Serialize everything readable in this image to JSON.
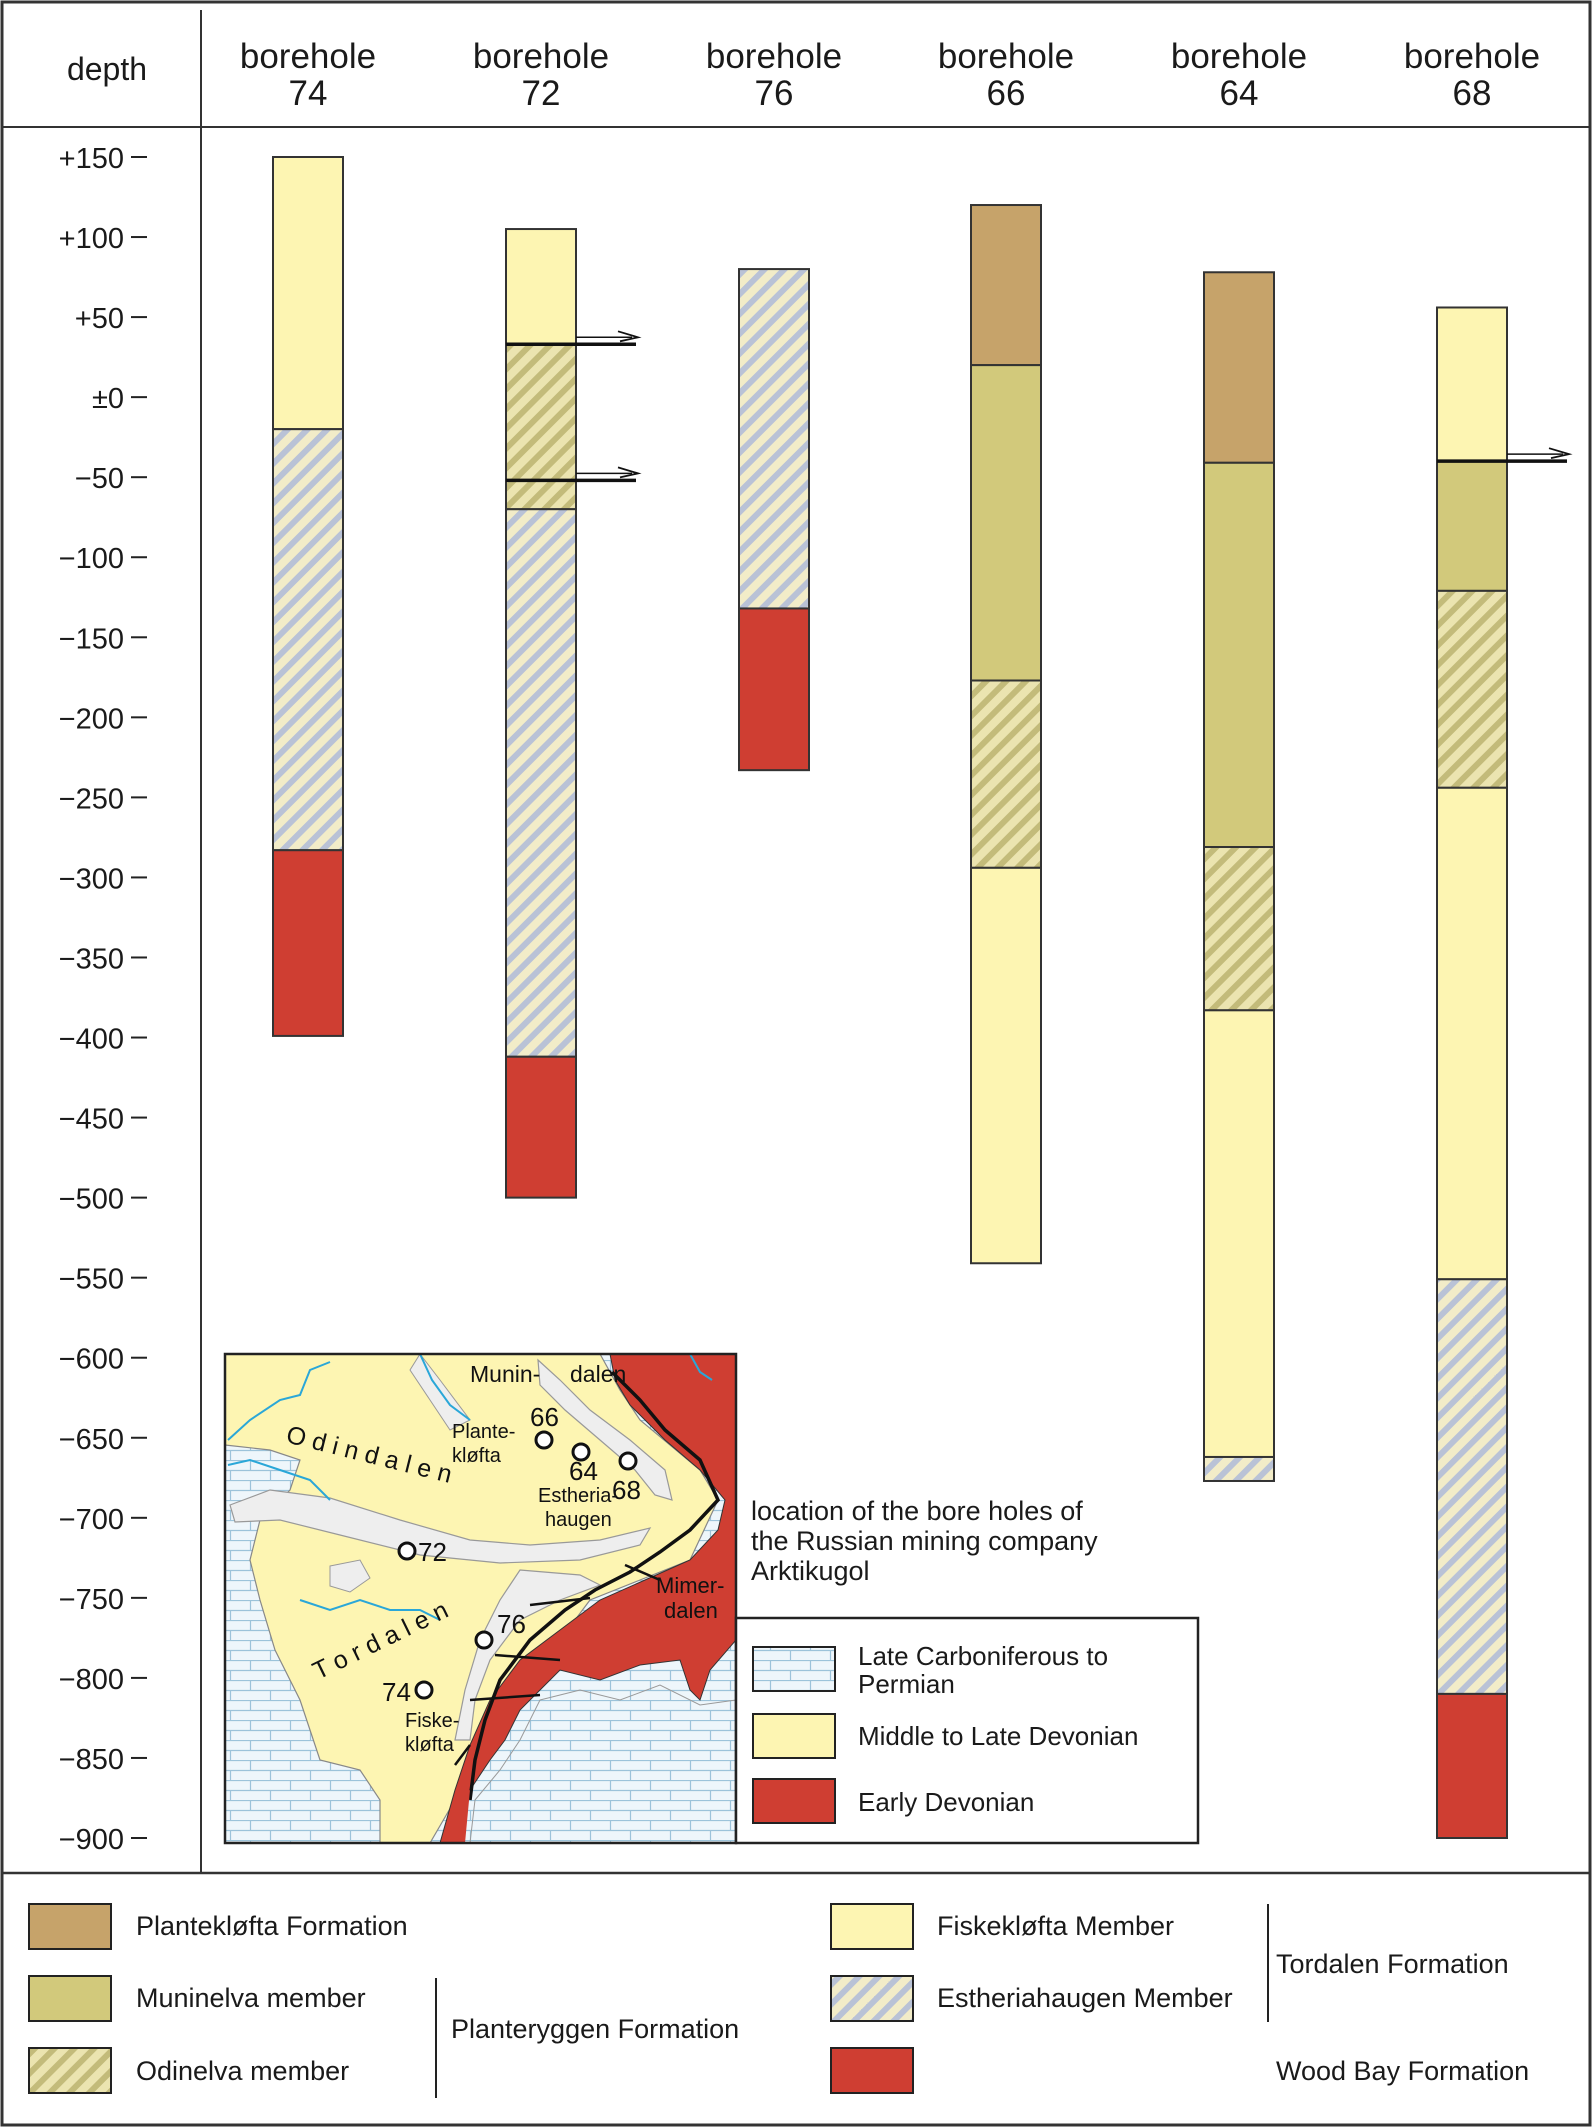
{
  "header": {
    "depth_label": "depth",
    "boreholes": [
      {
        "word": "borehole",
        "id": "74"
      },
      {
        "word": "borehole",
        "id": "72"
      },
      {
        "word": "borehole",
        "id": "76"
      },
      {
        "word": "borehole",
        "id": "66"
      },
      {
        "word": "borehole",
        "id": "64"
      },
      {
        "word": "borehole",
        "id": "68"
      }
    ]
  },
  "depth_axis": {
    "ticks": [
      {
        "value": 150,
        "label": "+150"
      },
      {
        "value": 100,
        "label": "+100"
      },
      {
        "value": 50,
        "label": "+50"
      },
      {
        "value": 0,
        "label": "±0"
      },
      {
        "value": -50,
        "label": "−50"
      },
      {
        "value": -100,
        "label": "−100"
      },
      {
        "value": -150,
        "label": "−150"
      },
      {
        "value": -200,
        "label": "−200"
      },
      {
        "value": -250,
        "label": "−250"
      },
      {
        "value": -300,
        "label": "−300"
      },
      {
        "value": -350,
        "label": "−350"
      },
      {
        "value": -400,
        "label": "−400"
      },
      {
        "value": -450,
        "label": "−450"
      },
      {
        "value": -500,
        "label": "−500"
      },
      {
        "value": -550,
        "label": "−550"
      },
      {
        "value": -600,
        "label": "−600"
      },
      {
        "value": -650,
        "label": "−650"
      },
      {
        "value": -700,
        "label": "−700"
      },
      {
        "value": -750,
        "label": "−750"
      },
      {
        "value": -800,
        "label": "−800"
      },
      {
        "value": -850,
        "label": "−850"
      },
      {
        "value": -900,
        "label": "−900"
      }
    ]
  },
  "columns": [
    {
      "borehole": "74",
      "segments": [
        {
          "top": 150,
          "bottom": -20,
          "unit": "fiskeklofta"
        },
        {
          "top": -20,
          "bottom": -283,
          "unit": "estheriahaugen"
        },
        {
          "top": -283,
          "bottom": -399,
          "unit": "wood_bay"
        }
      ],
      "faults": []
    },
    {
      "borehole": "72",
      "segments": [
        {
          "top": 105,
          "bottom": 33,
          "unit": "fiskeklofta"
        },
        {
          "top": 33,
          "bottom": -70,
          "unit": "odinelva"
        },
        {
          "top": -70,
          "bottom": -412,
          "unit": "estheriahaugen"
        },
        {
          "top": -412,
          "bottom": -500,
          "unit": "wood_bay"
        }
      ],
      "faults": [
        33,
        -52
      ]
    },
    {
      "borehole": "76",
      "segments": [
        {
          "top": 80,
          "bottom": -132,
          "unit": "estheriahaugen"
        },
        {
          "top": -132,
          "bottom": -233,
          "unit": "wood_bay"
        }
      ],
      "faults": []
    },
    {
      "borehole": "66",
      "segments": [
        {
          "top": 120,
          "bottom": 20,
          "unit": "planteklofta"
        },
        {
          "top": 20,
          "bottom": -177,
          "unit": "muninelva"
        },
        {
          "top": -177,
          "bottom": -294,
          "unit": "odinelva"
        },
        {
          "top": -294,
          "bottom": -541,
          "unit": "fiskeklofta"
        }
      ],
      "faults": []
    },
    {
      "borehole": "64",
      "segments": [
        {
          "top": 78,
          "bottom": -41,
          "unit": "planteklofta"
        },
        {
          "top": -41,
          "bottom": -281,
          "unit": "muninelva"
        },
        {
          "top": -281,
          "bottom": -383,
          "unit": "odinelva"
        },
        {
          "top": -383,
          "bottom": -662,
          "unit": "fiskeklofta"
        },
        {
          "top": -662,
          "bottom": -677,
          "unit": "estheriahaugen"
        }
      ],
      "faults": []
    },
    {
      "borehole": "68",
      "segments": [
        {
          "top": 56,
          "bottom": -40,
          "unit": "fiskeklofta"
        },
        {
          "top": -40,
          "bottom": -121,
          "unit": "muninelva"
        },
        {
          "top": -121,
          "bottom": -244,
          "unit": "odinelva"
        },
        {
          "top": -244,
          "bottom": -551,
          "unit": "fiskeklofta"
        },
        {
          "top": -551,
          "bottom": -810,
          "unit": "estheriahaugen"
        },
        {
          "top": -810,
          "bottom": -900,
          "unit": "wood_bay"
        }
      ],
      "faults": [
        -40
      ]
    }
  ],
  "units": {
    "planteklofta": {
      "color": "#c6a36a",
      "pattern": "none"
    },
    "muninelva": {
      "color": "#d2c97b",
      "pattern": "none"
    },
    "odinelva": {
      "color": "#e5dd9d",
      "pattern": "hatch-olive"
    },
    "fiskeklofta": {
      "color": "#fdf5b2",
      "pattern": "none"
    },
    "estheriahaugen": {
      "color": "#ece8d2",
      "pattern": "hatch-blue"
    },
    "wood_bay": {
      "color": "#cf3e32",
      "pattern": "none"
    }
  },
  "map": {
    "place_labels": {
      "munin": "Munin-",
      "dalen": "dalen",
      "plante": "Plante-",
      "klofta": "kløfta",
      "estheria": "Estheria-",
      "haugen": "haugen",
      "mimer": "Mimer-",
      "mimer_dalen": "dalen",
      "fiske": "Fiske-",
      "fiske_klofta": "kløfta",
      "odindalen": "O d i n d a l e n",
      "tordalen": "T o r d a l e n"
    },
    "sites": [
      "66",
      "64",
      "68",
      "72",
      "76",
      "74"
    ],
    "caption": [
      "location of the bore holes of",
      "the Russian mining company",
      "Arktikugol"
    ],
    "legend": [
      {
        "lines": [
          "Late Carboniferous to",
          "Permian"
        ],
        "swatch": "limestone"
      },
      {
        "lines": [
          "Middle to Late Devonian"
        ],
        "swatch": "#fdf5b2"
      },
      {
        "lines": [
          "Early Devonian"
        ],
        "swatch": "#cf3e32"
      }
    ]
  },
  "legend": {
    "planteklofta": "Plantekløfta Formation",
    "muninelva": "Muninelva member",
    "odinelva": "Odinelva member",
    "planteryggen_group": "Planteryggen Formation",
    "fiskeklofta": "Fiskekløfta Member",
    "estheriahaugen": "Estheriahaugen Member",
    "tordalen_group": "Tordalen Formation",
    "wood_bay": "Wood Bay Formation"
  }
}
